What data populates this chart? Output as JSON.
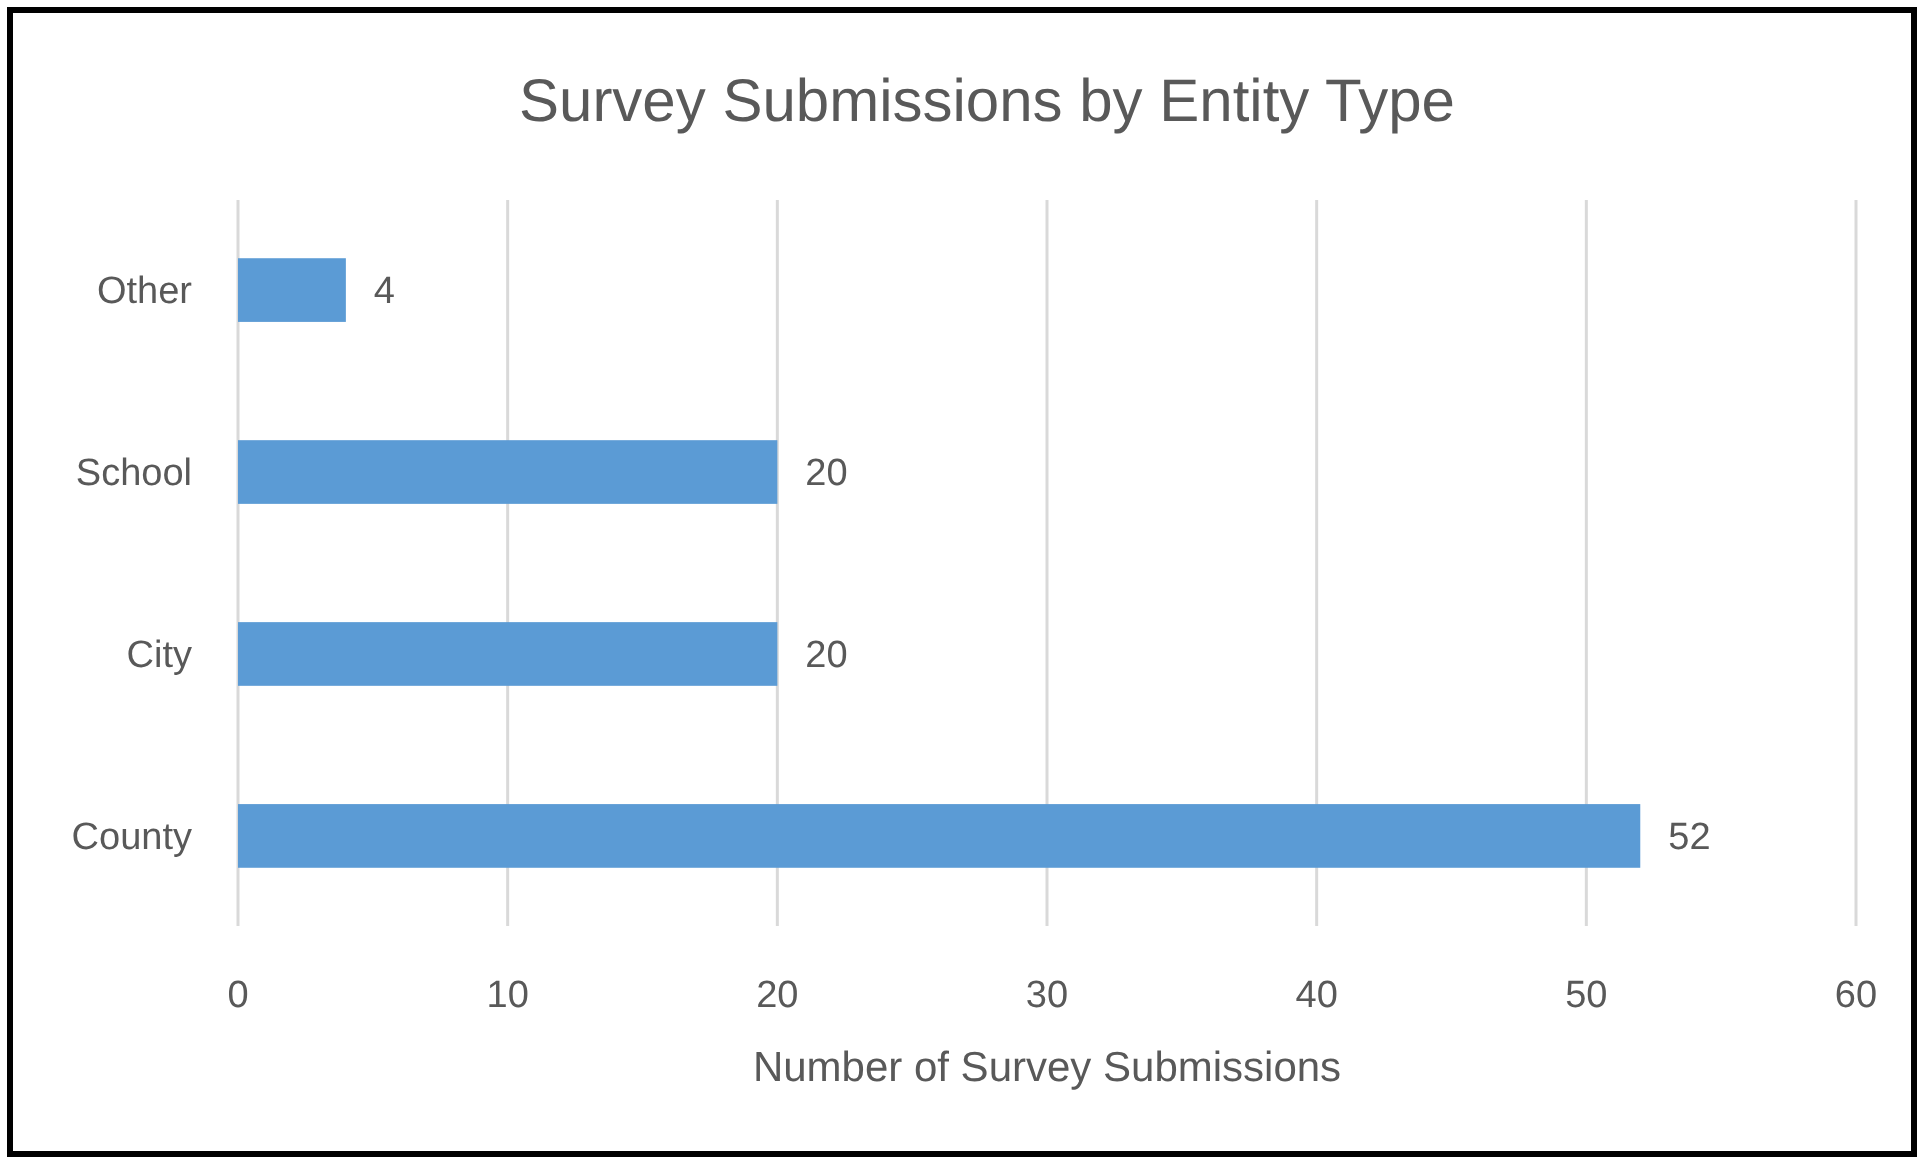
{
  "chart_data": {
    "type": "bar",
    "orientation": "horizontal",
    "title": "Survey Submissions by Entity Type",
    "xlabel": "Number of Survey Submissions",
    "categories": [
      "Other",
      "School",
      "City",
      "County"
    ],
    "values": [
      4,
      20,
      20,
      52
    ],
    "color": "#5b9bd5",
    "xlim": [
      0,
      60
    ],
    "xticks": [
      0,
      10,
      20,
      30,
      40,
      50,
      60
    ],
    "grid": "x",
    "data_labels": true
  }
}
